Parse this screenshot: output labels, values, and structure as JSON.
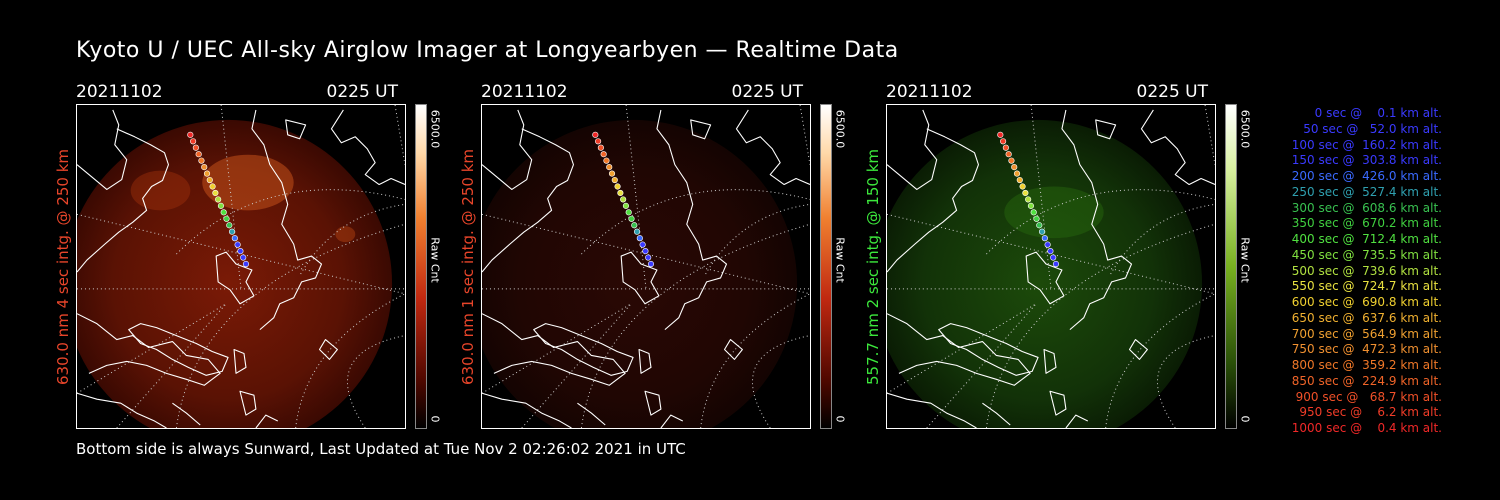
{
  "title": "Kyoto U / UEC All-sky Airglow Imager at Longyearbyen — Realtime Data",
  "footer": "Bottom side is always Sunward, Last Updated at Tue Nov  2 02:26:02 2021 in UTC",
  "panels": [
    {
      "date": "20211102",
      "time": "0225 UT",
      "side_label": "630.0 nm 4 sec intg. @ 250 km",
      "label_color": "#e8452a",
      "colorbar_max": "6500.0",
      "colorbar_min": "0",
      "colorbar_unit": "Raw Cnt",
      "glow": "red",
      "intensity": "bright"
    },
    {
      "date": "20211102",
      "time": "0225 UT",
      "side_label": "630.0 nm 1 sec intg. @ 250 km",
      "label_color": "#e8452a",
      "colorbar_max": "6500.0",
      "colorbar_min": "0",
      "colorbar_unit": "Raw Cnt",
      "glow": "red",
      "intensity": "dim"
    },
    {
      "date": "20211102",
      "time": "0225 UT",
      "side_label": "557.7 nm 2 sec intg. @ 150 km",
      "label_color": "#3ce83c",
      "colorbar_max": "6500.0",
      "colorbar_min": "0",
      "colorbar_unit": "Raw Cnt",
      "glow": "green",
      "intensity": "dim"
    }
  ],
  "legend": [
    {
      "text": "   0 sec @    0.1 km alt.",
      "color": "#3a3aff"
    },
    {
      "text": "  50 sec @   52.0 km alt.",
      "color": "#3a3aff"
    },
    {
      "text": " 100 sec @  160.2 km alt.",
      "color": "#3a3aff"
    },
    {
      "text": " 150 sec @  303.8 km alt.",
      "color": "#3a3aff"
    },
    {
      "text": " 200 sec @  426.0 km alt.",
      "color": "#3a6aff"
    },
    {
      "text": " 250 sec @  527.4 km alt.",
      "color": "#2fa0b0"
    },
    {
      "text": " 300 sec @  608.6 km alt.",
      "color": "#38c050"
    },
    {
      "text": " 350 sec @  670.2 km alt.",
      "color": "#40d040"
    },
    {
      "text": " 400 sec @  712.4 km alt.",
      "color": "#50e040"
    },
    {
      "text": " 450 sec @  735.5 km alt.",
      "color": "#80e040"
    },
    {
      "text": " 500 sec @  739.6 km alt.",
      "color": "#b0e040"
    },
    {
      "text": " 550 sec @  724.7 km alt.",
      "color": "#e8e040"
    },
    {
      "text": " 600 sec @  690.8 km alt.",
      "color": "#f0d030"
    },
    {
      "text": " 650 sec @  637.6 km alt.",
      "color": "#f0b030"
    },
    {
      "text": " 700 sec @  564.9 km alt.",
      "color": "#f0a030"
    },
    {
      "text": " 750 sec @  472.3 km alt.",
      "color": "#f09030"
    },
    {
      "text": " 800 sec @  359.2 km alt.",
      "color": "#f07828"
    },
    {
      "text": " 850 sec @  224.9 km alt.",
      "color": "#f06428"
    },
    {
      "text": " 900 sec @   68.7 km alt.",
      "color": "#f05028"
    },
    {
      "text": " 950 sec @    6.2 km alt.",
      "color": "#f03c28"
    },
    {
      "text": "1000 sec @    0.4 km alt.",
      "color": "#f02828"
    }
  ]
}
